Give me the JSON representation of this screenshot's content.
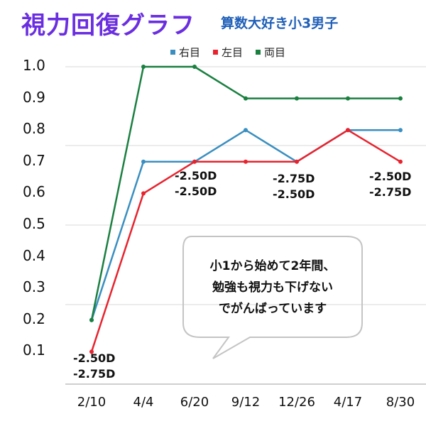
{
  "header": {
    "title": "視力回復グラフ",
    "subtitle": "算数大好き小3男子"
  },
  "legend": [
    {
      "label": "右目",
      "color": "#3a8fc0"
    },
    {
      "label": "左目",
      "color": "#e8232e"
    },
    {
      "label": "両目",
      "color": "#1a8040"
    }
  ],
  "annotations": {
    "d_2_10": "-2.50D\n-2.75D",
    "d_6_20": "-2.50D\n-2.50D",
    "d_12_26": "-2.75D\n-2.50D",
    "d_8_30": "-2.50D\n-2.75D",
    "bubble": "小1から始めて2年間、\n勉強も視力も下げない\nでがんばっています"
  },
  "chart_data": {
    "type": "line",
    "title": "視力回復グラフ",
    "subtitle": "算数大好き小3男子",
    "xlabel": "",
    "ylabel": "",
    "categories": [
      "2/10",
      "4/4",
      "6/20",
      "9/12",
      "12/26",
      "4/17",
      "8/30"
    ],
    "series": [
      {
        "name": "右目",
        "color": "#3a8fc0",
        "values": [
          0.2,
          0.7,
          0.7,
          0.8,
          0.7,
          0.8,
          0.8
        ]
      },
      {
        "name": "左目",
        "color": "#e8232e",
        "values": [
          0.1,
          0.6,
          0.7,
          0.7,
          0.7,
          0.8,
          0.7
        ]
      },
      {
        "name": "両目",
        "color": "#1a8040",
        "values": [
          0.2,
          1.0,
          1.0,
          0.9,
          0.9,
          0.9,
          0.9
        ]
      }
    ],
    "yticks": [
      "1.0",
      "0.9",
      "0.8",
      "0.7",
      "0.6",
      "0.5",
      "0.4",
      "0.3",
      "0.2",
      "0.1"
    ],
    "ylim": [
      0,
      1.0
    ],
    "grid": true,
    "legend_position": "top",
    "annotations": [
      {
        "x": "2/10",
        "text": "-2.50D / -2.75D"
      },
      {
        "x": "6/20",
        "text": "-2.50D / -2.50D"
      },
      {
        "x": "12/26",
        "text": "-2.75D / -2.50D"
      },
      {
        "x": "8/30",
        "text": "-2.50D / -2.75D"
      }
    ]
  }
}
